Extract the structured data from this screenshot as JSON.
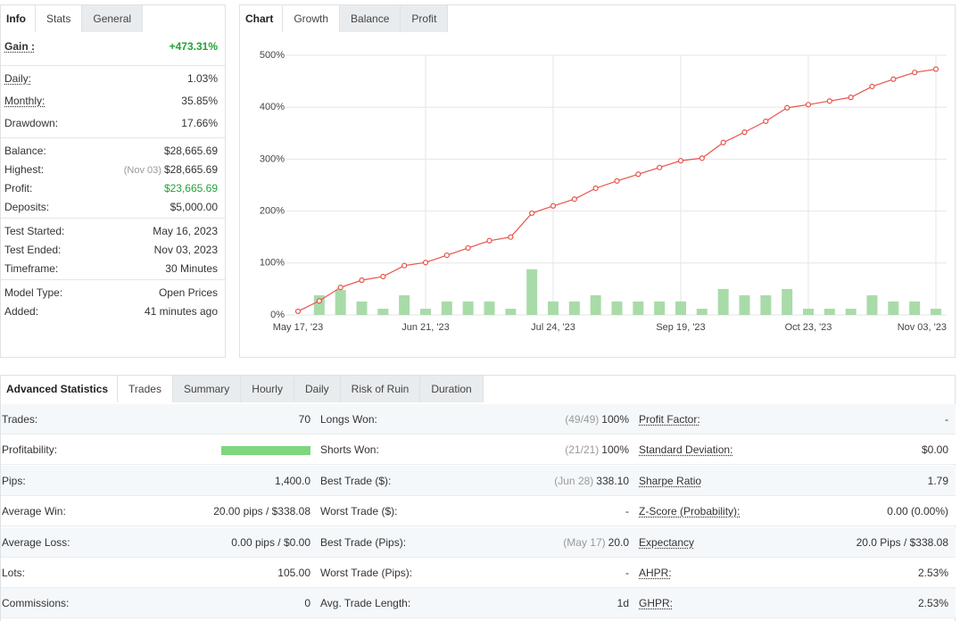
{
  "info": {
    "label": "Info",
    "tabs": [
      "Stats",
      "General"
    ],
    "gain": {
      "label": "Gain :",
      "value": "+473.31%",
      "color": "#21a336"
    },
    "groups": [
      [
        {
          "label": "Daily:",
          "value": "1.03%",
          "underline": true
        },
        {
          "label": "Monthly:",
          "value": "35.85%",
          "underline": true
        },
        {
          "label": "Drawdown:",
          "value": "17.66%"
        }
      ],
      [
        {
          "label": "Balance:",
          "value": "$28,665.69"
        },
        {
          "label": "Highest:",
          "note": "(Nov 03)",
          "value": "$28,665.69"
        },
        {
          "label": "Profit:",
          "value": "$23,665.69",
          "color": "#21a336"
        },
        {
          "label": "Deposits:",
          "value": "$5,000.00"
        }
      ],
      [
        {
          "label": "Test Started:",
          "value": "May 16, 2023"
        },
        {
          "label": "Test Ended:",
          "value": "Nov 03, 2023"
        },
        {
          "label": "Timeframe:",
          "value": "30 Minutes"
        }
      ],
      [
        {
          "label": "Model Type:",
          "value": "Open Prices"
        },
        {
          "label": "Added:",
          "value": "41 minutes ago"
        }
      ]
    ]
  },
  "chart_panel": {
    "label": "Chart",
    "tabs": [
      "Growth",
      "Balance",
      "Profit"
    ]
  },
  "chart_data": {
    "type": "line",
    "categories": [
      "May 17, '23",
      null,
      null,
      null,
      null,
      null,
      "Jun 21, '23",
      null,
      null,
      null,
      null,
      null,
      "Jul 24, '23",
      null,
      null,
      null,
      null,
      null,
      "Sep 19, '23",
      null,
      null,
      null,
      null,
      null,
      "Oct 23, '23",
      null,
      null,
      null,
      null,
      null,
      "Nov 03, '23"
    ],
    "series": [
      {
        "type": "line",
        "color": "#e8534a",
        "values": [
          7,
          27,
          53,
          67,
          74,
          95,
          101,
          115,
          129,
          143,
          150,
          196,
          210,
          223,
          244,
          258,
          271,
          284,
          297,
          302,
          332,
          352,
          373,
          399,
          405,
          412,
          419,
          440,
          454,
          467,
          473.31
        ]
      },
      {
        "type": "bar",
        "color": "#a9dba9",
        "values": [
          null,
          38,
          48,
          26,
          12,
          38,
          12,
          26,
          26,
          26,
          12,
          88,
          26,
          26,
          38,
          26,
          26,
          26,
          26,
          12,
          50,
          38,
          38,
          50,
          12,
          12,
          12,
          38,
          26,
          26,
          12
        ]
      }
    ],
    "ylim": [
      0,
      500
    ],
    "yticks": [
      {
        "value": 0,
        "label": "0%"
      },
      {
        "value": 100,
        "label": "100%"
      },
      {
        "value": 200,
        "label": "200%"
      },
      {
        "value": 300,
        "label": "300%"
      },
      {
        "value": 400,
        "label": "400%"
      },
      {
        "value": 500,
        "label": "500%"
      }
    ],
    "grid": true
  },
  "advanced": {
    "label": "Advanced Statistics",
    "tabs": [
      "Trades",
      "Summary",
      "Hourly",
      "Daily",
      "Risk of Ruin",
      "Duration"
    ],
    "rows": [
      [
        {
          "label": "Trades:",
          "value": "70"
        },
        {
          "label": "Longs Won:",
          "note": "(49/49)",
          "value": "100%"
        },
        {
          "label": "Profit Factor:",
          "value": "-",
          "underline": true
        }
      ],
      [
        {
          "label": "Profitability:"
        },
        {
          "label": "Shorts Won:",
          "note": "(21/21)",
          "value": "100%"
        },
        {
          "label": "Standard Deviation:",
          "value": "$0.00",
          "underline": true
        }
      ],
      [
        {
          "label": "Pips:",
          "value": "1,400.0"
        },
        {
          "label": "Best Trade ($):",
          "note": "(Jun 28)",
          "value": "338.10"
        },
        {
          "label": "Sharpe Ratio",
          "value": "1.79",
          "underline": true
        }
      ],
      [
        {
          "label": "Average Win:",
          "value": "20.00 pips / $338.08"
        },
        {
          "label": "Worst Trade ($):",
          "value": "-"
        },
        {
          "label": "Z-Score (Probability):",
          "value": "0.00 (0.00%)",
          "underline": true
        }
      ],
      [
        {
          "label": "Average Loss:",
          "value": "0.00 pips / $0.00"
        },
        {
          "label": "Best Trade (Pips):",
          "note": "(May 17)",
          "value": "20.0"
        },
        {
          "label": "Expectancy",
          "value": "20.0 Pips / $338.08",
          "underline": true
        }
      ],
      [
        {
          "label": "Lots:",
          "value": "105.00"
        },
        {
          "label": "Worst Trade (Pips):",
          "value": "-"
        },
        {
          "label": "AHPR:",
          "value": "2.53%",
          "underline": true
        }
      ],
      [
        {
          "label": "Commissions:",
          "value": "0"
        },
        {
          "label": "Avg. Trade Length:",
          "value": "1d"
        },
        {
          "label": "GHPR:",
          "value": "2.53%",
          "underline": true
        }
      ]
    ]
  }
}
